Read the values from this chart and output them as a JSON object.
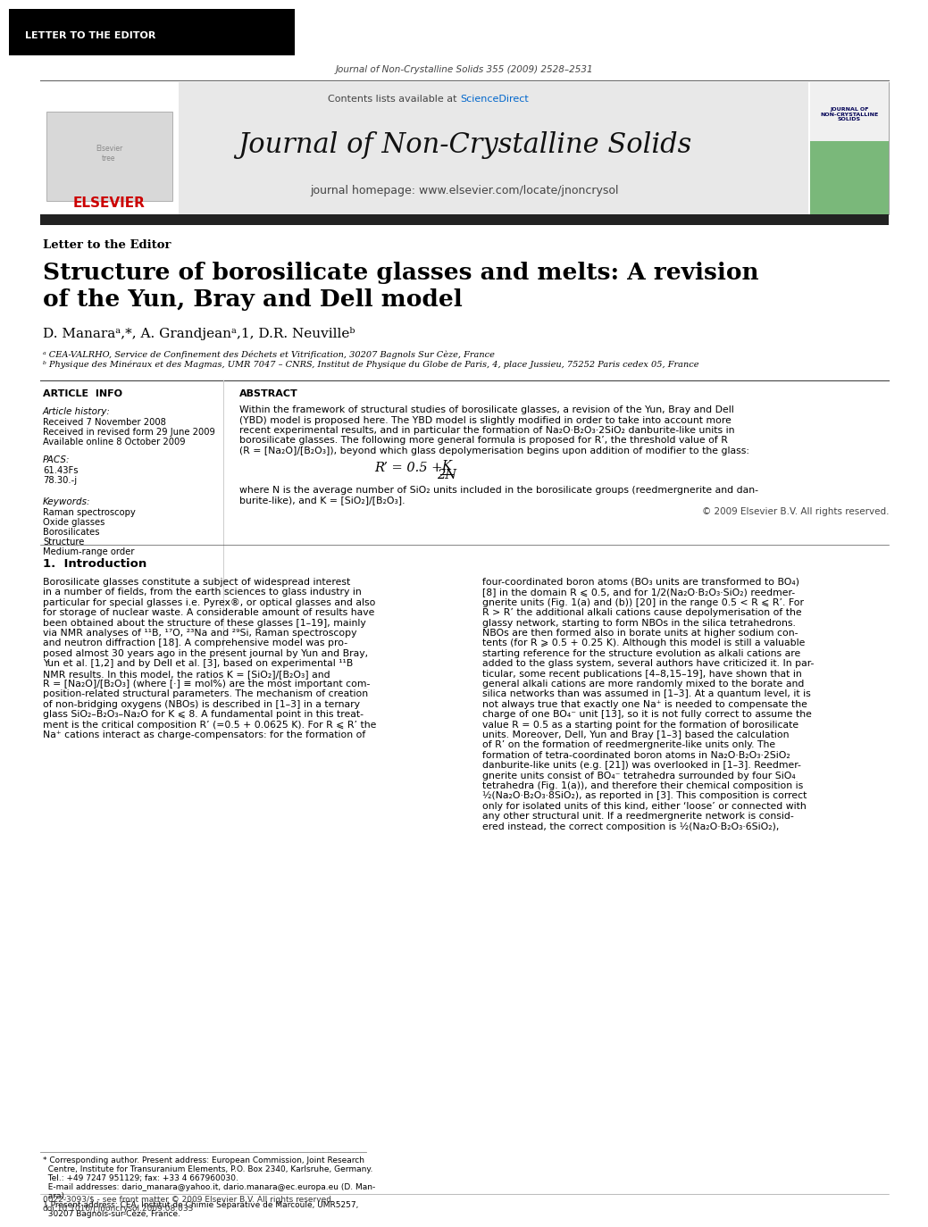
{
  "header_bg": "#000000",
  "header_text": "LETTER TO THE EDITOR",
  "header_text_color": "#ffffff",
  "journal_info_text": "Journal of Non-Crystalline Solids 355 (2009) 2528–2531",
  "journal_banner_bg": "#e8e8e8",
  "journal_name": "Journal of Non-Crystalline Solids",
  "journal_homepage": "journal homepage: www.elsevier.com/locate/jnoncrysol",
  "contents_text": "Contents lists available at ",
  "sciencedirect_text": "ScienceDirect",
  "sciencedirect_color": "#0066cc",
  "elsevier_color": "#cc0000",
  "section_label": "Letter to the Editor",
  "paper_title_line1": "Structure of borosilicate glasses and melts: A revision",
  "paper_title_line2": "of the Yun, Bray and Dell model",
  "authors_text": "D. Manaraᵃ,*, A. Grandjeanᵃ,1, D.R. Neuvilleᵇ",
  "affil_a": "ᵃ CEA-VALRHO, Service de Confinement des Déchets et Vitrification, 30207 Bagnols Sur Cèze, France",
  "affil_b": "ᵇ Physique des Minéraux et des Magmas, UMR 7047 – CNRS, Institut de Physique du Globe de Paris, 4, place Jussieu, 75252 Paris cedex 05, France",
  "article_info_label": "ARTICLE  INFO",
  "article_history_label": "Article history:",
  "received_text": "Received 7 November 2008",
  "revised_text": "Received in revised form 29 June 2009",
  "available_text": "Available online 8 October 2009",
  "pacs_label": "PACS:",
  "pacs_values": "61.43Fs\n78.30.-j",
  "keywords_label": "Keywords:",
  "keywords_values": "Raman spectroscopy\nOxide glasses\nBorosilicates\nStructure\nMedium-range order",
  "abstract_label": "ABSTRACT",
  "abstract_text": "Within the framework of structural studies of borosilicate glasses, a revision of the Yun, Bray and Dell\n(YBD) model is proposed here. The YBD model is slightly modified in order to take into account more\nrecent experimental results, and in particular the formation of Na₂O·B₂O₃·2SiO₂ danburite-like units in\nborosilicate glasses. The following more general formula is proposed for R’, the threshold value of R\n(R = [Na₂O]/[B₂O₃]), beyond which glass depolymerisation begins upon addition of modifier to the glass:",
  "formula": "R’ = 0.5 +      K\n                   2N",
  "formula_note1": "where N is the average number of SiO₂ units included in the borosilicate groups (reedmergnerite and dan-",
  "formula_note2": "burite-like), and K = [SiO₂]/[B₂O₃].",
  "copyright_text": "© 2009 Elsevier B.V. All rights reserved.",
  "intro_label": "1.  Introduction",
  "intro_col1_lines": [
    "Borosilicate glasses constitute a subject of widespread interest",
    "in a number of fields, from the earth sciences to glass industry in",
    "particular for special glasses i.e. Pyrex®, or optical glasses and also",
    "for storage of nuclear waste. A considerable amount of results have",
    "been obtained about the structure of these glasses [1–19], mainly",
    "via NMR analyses of ¹¹B, ¹⁷O, ²³Na and ²⁹Si, Raman spectroscopy",
    "and neutron diffraction [18]. A comprehensive model was pro-",
    "posed almost 30 years ago in the present journal by Yun and Bray,",
    "Yun et al. [1,2] and by Dell et al. [3], based on experimental ¹¹B",
    "NMR results. In this model, the ratios K = [SiO₂]/[B₂O₃] and",
    "R = [Na₂O]/[B₂O₃] (where [·] ≡ mol%) are the most important com-",
    "position-related structural parameters. The mechanism of creation",
    "of non-bridging oxygens (NBOs) is described in [1–3] in a ternary",
    "glass SiO₂–B₂O₃–Na₂O for K ⩽ 8. A fundamental point in this treat-",
    "ment is the critical composition R’ (=0.5 + 0.0625 K). For R ⩽ R’ the",
    "Na⁺ cations interact as charge-compensators: for the formation of"
  ],
  "intro_col2_lines": [
    "four-coordinated boron atoms (BO₃ units are transformed to BO₄)",
    "[8] in the domain R ⩽ 0.5, and for 1/2(Na₂O·B₂O₃·SiO₂) reedmer-",
    "gnerite units (Fig. 1(a) and (b)) [20] in the range 0.5 < R ⩽ R’. For",
    "R > R’ the additional alkali cations cause depolymerisation of the",
    "glassy network, starting to form NBOs in the silica tetrahedrons.",
    "NBOs are then formed also in borate units at higher sodium con-",
    "tents (for R ⩾ 0.5 + 0.25 K). Although this model is still a valuable",
    "starting reference for the structure evolution as alkali cations are",
    "added to the glass system, several authors have criticized it. In par-",
    "ticular, some recent publications [4–8,15–19], have shown that in",
    "general alkali cations are more randomly mixed to the borate and",
    "silica networks than was assumed in [1–3]. At a quantum level, it is",
    "not always true that exactly one Na⁺ is needed to compensate the",
    "charge of one BO₄⁻ unit [13], so it is not fully correct to assume the",
    "value R = 0.5 as a starting point for the formation of borosilicate",
    "units. Moreover, Dell, Yun and Bray [1–3] based the calculation",
    "of R’ on the formation of reedmergnerite-like units only. The",
    "formation of tetra-coordinated boron atoms in Na₂O·B₂O₃·2SiO₂",
    "danburite-like units (e.g. [21]) was overlooked in [1–3]. Reedmer-",
    "gnerite units consist of BO₄⁻ tetrahedra surrounded by four SiO₄",
    "tetrahedra (Fig. 1(a)), and therefore their chemical composition is",
    "½(Na₂O·B₂O₃·8SiO₂), as reported in [3]. This composition is correct",
    "only for isolated units of this kind, either ‘loose’ or connected with",
    "any other structural unit. If a reedmergnerite network is consid-",
    "ered instead, the correct composition is ½(Na₂O·B₂O₃·6SiO₂),"
  ],
  "footnote_star": "* Corresponding author. Present address: European Commission, Joint Research",
  "footnote_star2": "  Centre, Institute for Transuranium Elements, P.O. Box 2340, Karlsruhe, Germany.",
  "footnote_star3": "  Tel.: +49 7247 951129; fax: +33 4 667960030.",
  "footnote_email": "  E-mail addresses: dario_manara@yahoo.it, dario.manara@ec.europa.eu (D. Man-",
  "footnote_email2": "  ara).",
  "footnote_1": "1 Present address: CEA, Institut de Chimie Séparative de Marcoule, UMR5257,",
  "footnote_12": "  30207 Bagnols-sur-Cèze, France.",
  "footer_line1": "0022-3093/$ - see front matter © 2009 Elsevier B.V. All rights reserved.",
  "footer_line2": "doi:10.1016/j.jnoncrysol.2009.08.033",
  "bg_color": "#ffffff",
  "text_color": "#000000"
}
